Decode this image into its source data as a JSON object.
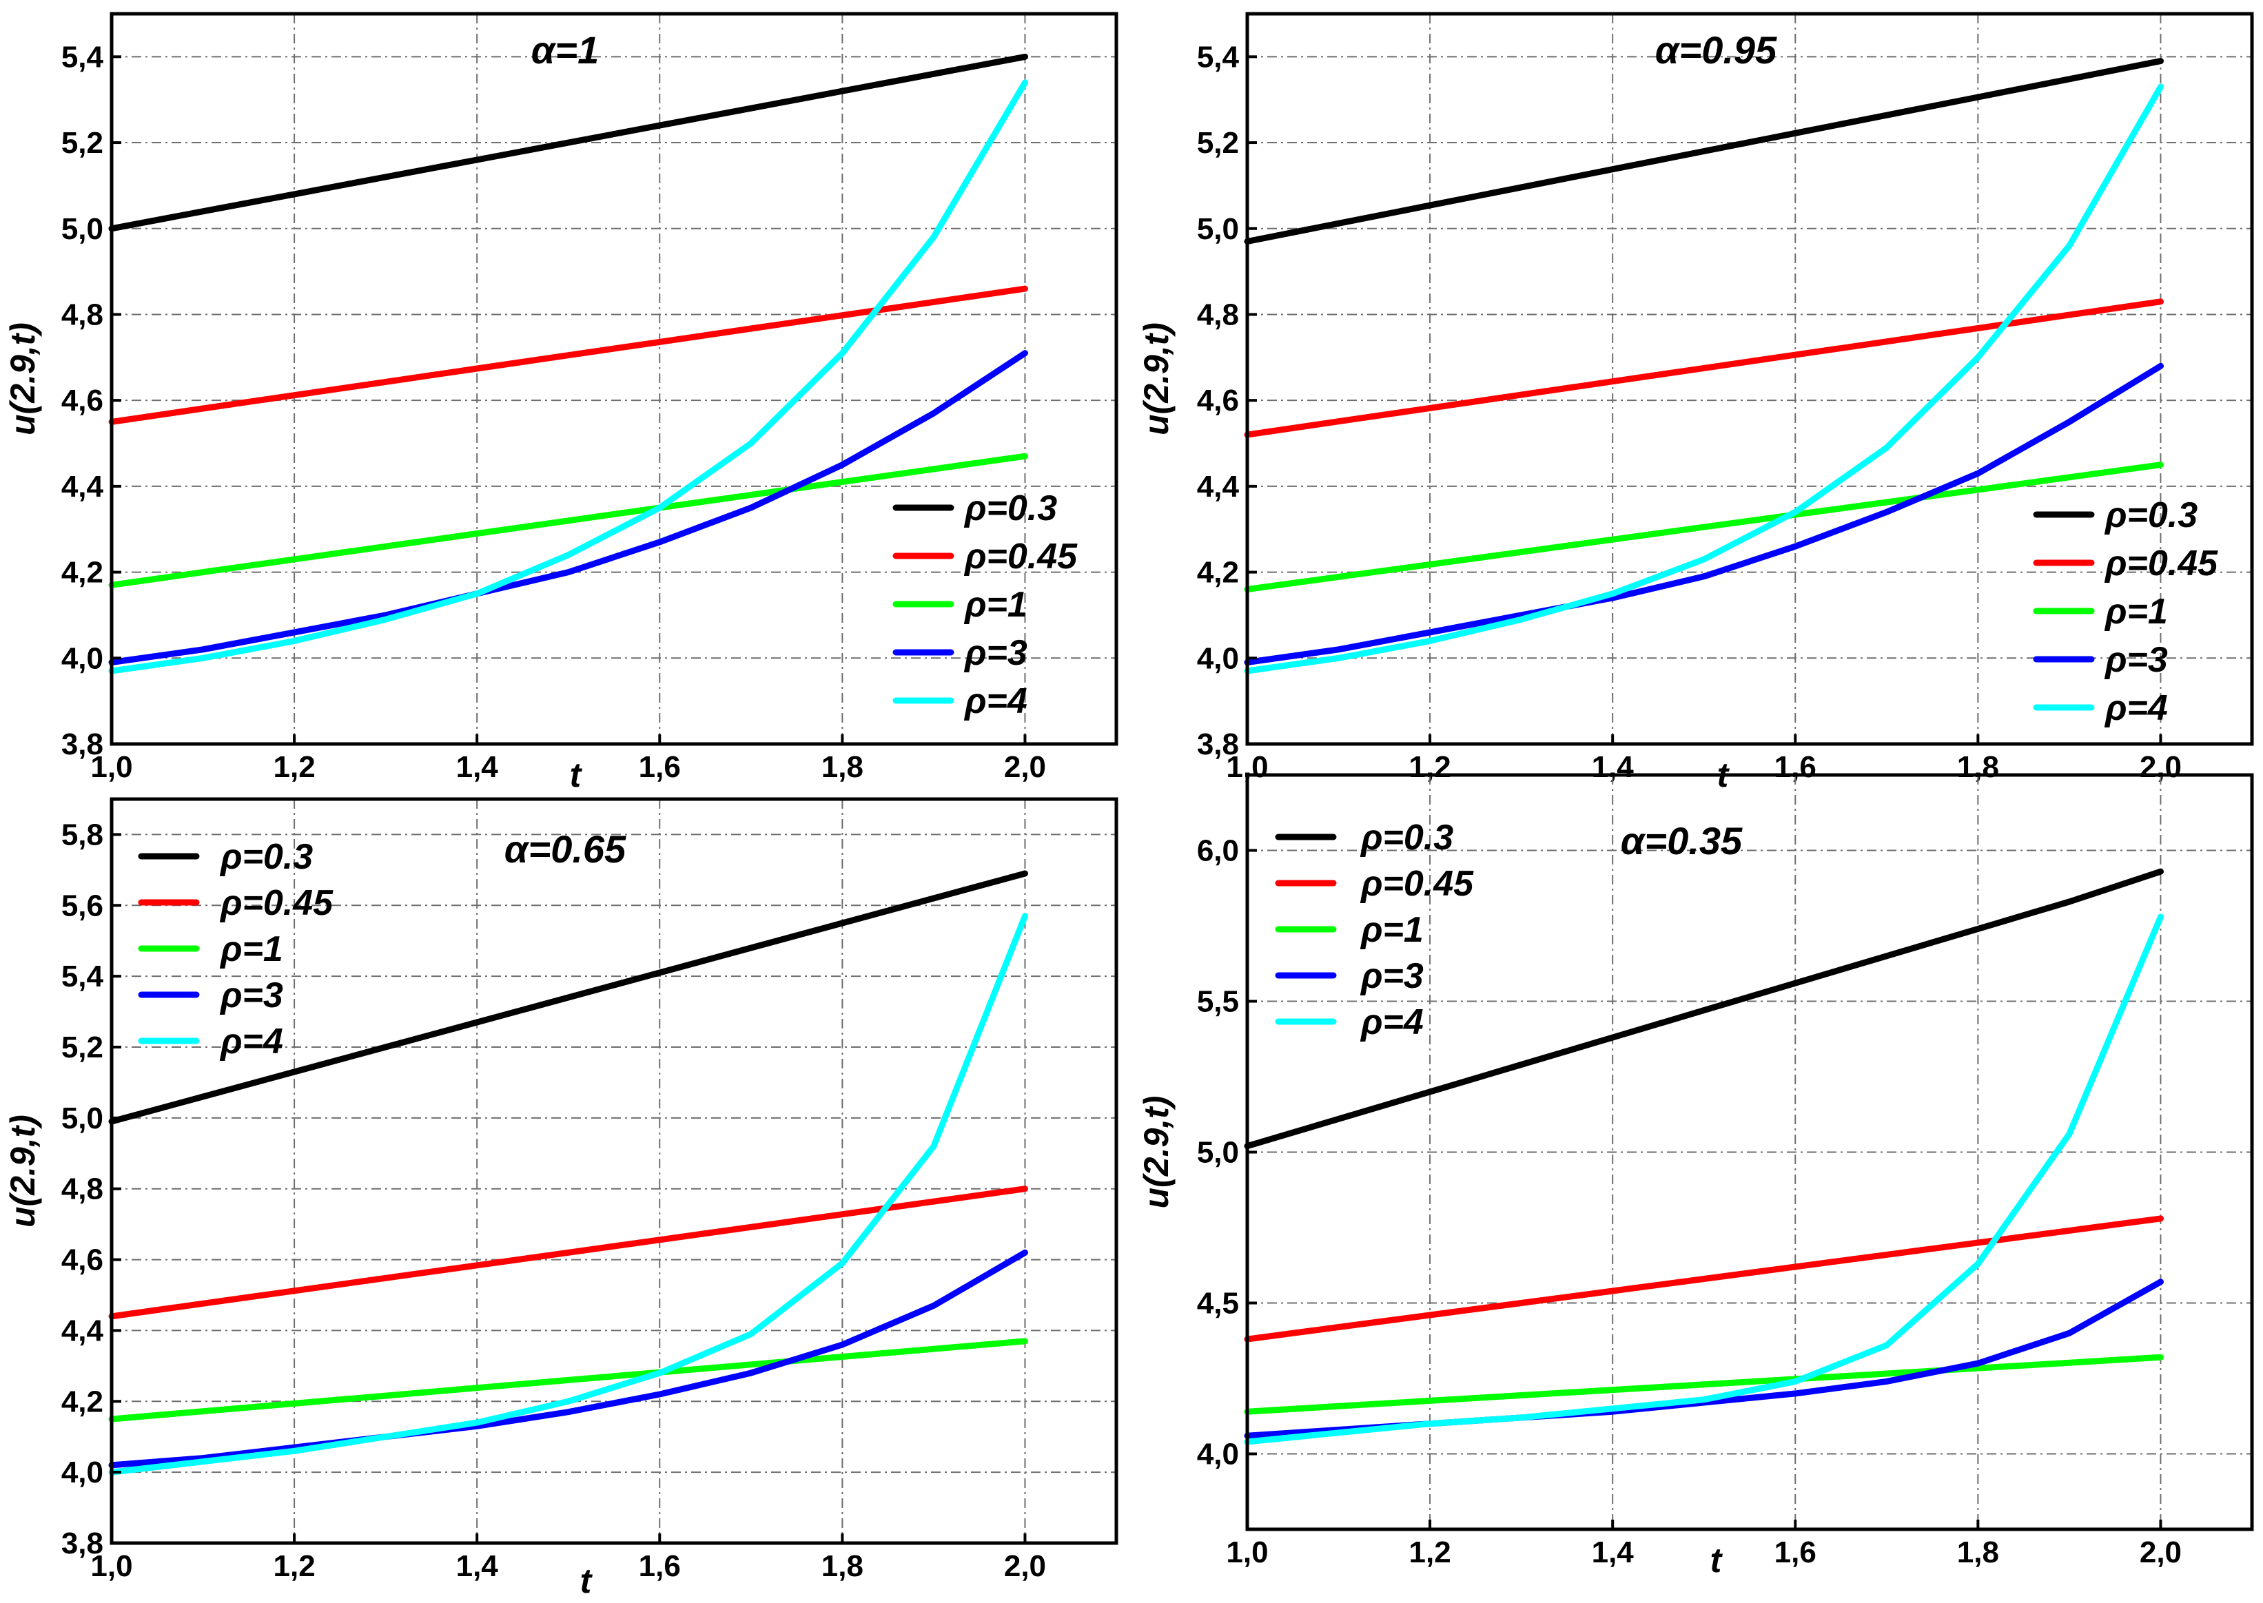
{
  "series_styles": [
    {
      "key": "rho03",
      "color": "#000000"
    },
    {
      "key": "rho045",
      "color": "#ff0000"
    },
    {
      "key": "rho1",
      "color": "#00ff00"
    },
    {
      "key": "rho3",
      "color": "#0000ff"
    },
    {
      "key": "rho4",
      "color": "#00ffff"
    }
  ],
  "chart_data": [
    {
      "type": "line",
      "title": "α=1",
      "xlabel": "t",
      "ylabel": "u(2.9,t)",
      "xlim": [
        1.0,
        2.1
      ],
      "ylim": [
        3.8,
        5.5
      ],
      "xticks": [
        1.0,
        1.2,
        1.4,
        1.6,
        1.8,
        2.0
      ],
      "xtick_labels": [
        "1,0",
        "1,2",
        "1,4",
        "1,6",
        "1,8",
        "2,0"
      ],
      "yticks": [
        3.8,
        4.0,
        4.2,
        4.4,
        4.6,
        4.8,
        5.0,
        5.2,
        5.4
      ],
      "ytick_labels": [
        "3,8",
        "4,0",
        "4,2",
        "4,4",
        "4,6",
        "4,8",
        "5,0",
        "5,2",
        "5,4"
      ],
      "legend_position": "right",
      "x": [
        1.0,
        1.1,
        1.2,
        1.3,
        1.4,
        1.5,
        1.6,
        1.7,
        1.8,
        1.9,
        2.0
      ],
      "series": [
        {
          "name": "ρ=0.3",
          "values": [
            5.0,
            5.04,
            5.08,
            5.12,
            5.16,
            5.2,
            5.24,
            5.28,
            5.32,
            5.36,
            5.4
          ]
        },
        {
          "name": "ρ=0.45",
          "values": [
            4.55,
            4.581,
            4.612,
            4.643,
            4.674,
            4.705,
            4.736,
            4.767,
            4.798,
            4.829,
            4.86
          ]
        },
        {
          "name": "ρ=1",
          "values": [
            4.17,
            4.2,
            4.23,
            4.26,
            4.29,
            4.32,
            4.35,
            4.38,
            4.41,
            4.44,
            4.47
          ]
        },
        {
          "name": "ρ=3",
          "values": [
            3.99,
            4.02,
            4.06,
            4.1,
            4.15,
            4.2,
            4.27,
            4.35,
            4.45,
            4.57,
            4.71
          ]
        },
        {
          "name": "ρ=4",
          "values": [
            3.97,
            4.0,
            4.04,
            4.09,
            4.15,
            4.24,
            4.35,
            4.5,
            4.71,
            4.98,
            5.34
          ]
        }
      ]
    },
    {
      "type": "line",
      "title": "α=0.95",
      "xlabel": "t",
      "ylabel": "u(2.9,t)",
      "xlim": [
        1.0,
        2.1
      ],
      "ylim": [
        3.8,
        5.5
      ],
      "xticks": [
        1.0,
        1.2,
        1.4,
        1.6,
        1.8,
        2.0
      ],
      "xtick_labels": [
        "1,0",
        "1,2",
        "1,4",
        "1,6",
        "1,8",
        "2,0"
      ],
      "yticks": [
        3.8,
        4.0,
        4.2,
        4.4,
        4.6,
        4.8,
        5.0,
        5.2,
        5.4
      ],
      "ytick_labels": [
        "3,8",
        "4,0",
        "4,2",
        "4,4",
        "4,6",
        "4,8",
        "5,0",
        "5,2",
        "5,4"
      ],
      "legend_position": "right",
      "x": [
        1.0,
        1.1,
        1.2,
        1.3,
        1.4,
        1.5,
        1.6,
        1.7,
        1.8,
        1.9,
        2.0
      ],
      "series": [
        {
          "name": "ρ=0.3",
          "values": [
            4.97,
            5.012,
            5.054,
            5.096,
            5.138,
            5.18,
            5.222,
            5.264,
            5.306,
            5.348,
            5.39
          ]
        },
        {
          "name": "ρ=0.45",
          "values": [
            4.52,
            4.551,
            4.582,
            4.613,
            4.644,
            4.675,
            4.706,
            4.737,
            4.768,
            4.799,
            4.83
          ]
        },
        {
          "name": "ρ=1",
          "values": [
            4.16,
            4.189,
            4.218,
            4.247,
            4.276,
            4.305,
            4.334,
            4.363,
            4.392,
            4.421,
            4.45
          ]
        },
        {
          "name": "ρ=3",
          "values": [
            3.99,
            4.02,
            4.06,
            4.1,
            4.14,
            4.19,
            4.26,
            4.34,
            4.43,
            4.55,
            4.68
          ]
        },
        {
          "name": "ρ=4",
          "values": [
            3.97,
            4.0,
            4.04,
            4.09,
            4.15,
            4.23,
            4.34,
            4.49,
            4.7,
            4.96,
            5.33
          ]
        }
      ]
    },
    {
      "type": "line",
      "title": "α=0.65",
      "xlabel": "t",
      "ylabel": "u(2.9,t)",
      "xlim": [
        1.0,
        2.1
      ],
      "ylim": [
        3.8,
        5.9
      ],
      "xticks": [
        1.0,
        1.2,
        1.4,
        1.6,
        1.8,
        2.0
      ],
      "xtick_labels": [
        "1,0",
        "1,2",
        "1,4",
        "1,6",
        "1,8",
        "2,0"
      ],
      "yticks": [
        3.8,
        4.0,
        4.2,
        4.4,
        4.6,
        4.8,
        5.0,
        5.2,
        5.4,
        5.6,
        5.8
      ],
      "ytick_labels": [
        "3,8",
        "4,0",
        "4,2",
        "4,4",
        "4,6",
        "4,8",
        "5,0",
        "5,2",
        "5,4",
        "5,6",
        "5,8"
      ],
      "legend_position": "top-left",
      "x": [
        1.0,
        1.1,
        1.2,
        1.3,
        1.4,
        1.5,
        1.6,
        1.7,
        1.8,
        1.9,
        2.0
      ],
      "series": [
        {
          "name": "ρ=0.3",
          "values": [
            4.99,
            5.06,
            5.13,
            5.2,
            5.27,
            5.34,
            5.41,
            5.48,
            5.55,
            5.62,
            5.69
          ]
        },
        {
          "name": "ρ=0.45",
          "values": [
            4.44,
            4.476,
            4.512,
            4.548,
            4.584,
            4.62,
            4.656,
            4.692,
            4.728,
            4.764,
            4.8
          ]
        },
        {
          "name": "ρ=1",
          "values": [
            4.15,
            4.172,
            4.194,
            4.216,
            4.238,
            4.26,
            4.282,
            4.304,
            4.326,
            4.348,
            4.37
          ]
        },
        {
          "name": "ρ=3",
          "values": [
            4.02,
            4.04,
            4.07,
            4.1,
            4.13,
            4.17,
            4.22,
            4.28,
            4.36,
            4.47,
            4.62
          ]
        },
        {
          "name": "ρ=4",
          "values": [
            4.0,
            4.03,
            4.06,
            4.1,
            4.14,
            4.2,
            4.28,
            4.39,
            4.59,
            4.92,
            5.57
          ]
        }
      ]
    },
    {
      "type": "line",
      "title": "α=0.35",
      "xlabel": "t",
      "ylabel": "u(2.9,t)",
      "xlim": [
        1.0,
        2.1
      ],
      "ylim": [
        3.75,
        6.25
      ],
      "xticks": [
        1.0,
        1.2,
        1.4,
        1.6,
        1.8,
        2.0
      ],
      "xtick_labels": [
        "1,0",
        "1,2",
        "1,4",
        "1,6",
        "1,8",
        "2,0"
      ],
      "yticks": [
        4.0,
        4.5,
        5.0,
        5.5,
        6.0
      ],
      "ytick_labels": [
        "4,0",
        "4,5",
        "5,0",
        "5,5",
        "6,0"
      ],
      "legend_position": "top-left",
      "x": [
        1.0,
        1.1,
        1.2,
        1.3,
        1.4,
        1.5,
        1.6,
        1.7,
        1.8,
        1.9,
        2.0
      ],
      "series": [
        {
          "name": "ρ=0.3",
          "values": [
            5.02,
            5.11,
            5.2,
            5.29,
            5.38,
            5.47,
            5.56,
            5.65,
            5.74,
            5.83,
            5.93
          ]
        },
        {
          "name": "ρ=0.45",
          "values": [
            4.38,
            4.42,
            4.46,
            4.5,
            4.54,
            4.58,
            4.62,
            4.66,
            4.7,
            4.74,
            4.78
          ]
        },
        {
          "name": "ρ=1",
          "values": [
            4.14,
            4.158,
            4.176,
            4.194,
            4.212,
            4.23,
            4.248,
            4.266,
            4.284,
            4.302,
            4.32
          ]
        },
        {
          "name": "ρ=3",
          "values": [
            4.06,
            4.08,
            4.1,
            4.12,
            4.14,
            4.17,
            4.2,
            4.24,
            4.3,
            4.4,
            4.57
          ]
        },
        {
          "name": "ρ=4",
          "values": [
            4.04,
            4.07,
            4.1,
            4.12,
            4.15,
            4.18,
            4.24,
            4.36,
            4.63,
            5.06,
            5.78
          ]
        }
      ]
    }
  ]
}
